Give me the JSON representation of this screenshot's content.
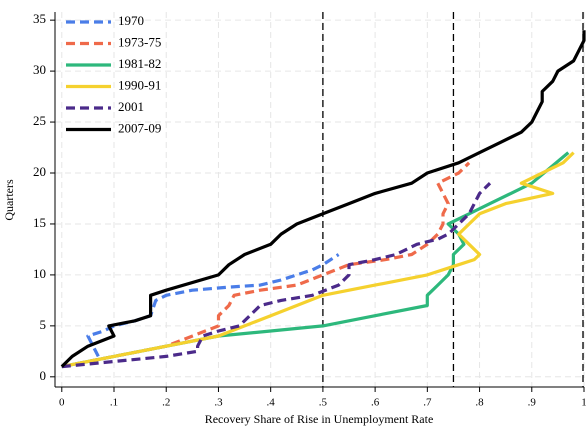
{
  "chart_data": {
    "type": "line",
    "xlabel": "Recovery Share of Rise in Unemployment Rate",
    "ylabel": "Quarters",
    "xlim": [
      -0.013,
      1
    ],
    "ylim": [
      -1,
      35.8
    ],
    "xticks": [
      0,
      {
        "value": 0.1,
        "label": ".1"
      },
      {
        "value": 0.2,
        "label": ".2"
      },
      {
        "value": 0.3,
        "label": ".3"
      },
      {
        "value": 0.4,
        "label": ".4"
      },
      {
        "value": 0.5,
        "label": ".5"
      },
      {
        "value": 0.6,
        "label": ".6"
      },
      {
        "value": 0.7,
        "label": ".7"
      },
      {
        "value": 0.8,
        "label": ".8"
      },
      {
        "value": 0.9,
        "label": ".9"
      },
      1
    ],
    "yticks": [
      0,
      5,
      10,
      15,
      20,
      25,
      30,
      35
    ],
    "grid": true,
    "legend": "top-left",
    "vlines": [
      0.5,
      0.75,
      1
    ],
    "series": [
      {
        "name": "1970",
        "color": "#4a7de8",
        "dashed": true,
        "x": [
          0.07,
          0.05,
          0.08,
          0.1,
          0.14,
          0.17,
          0.18,
          0.2,
          0.25,
          0.32,
          0.38,
          0.42,
          0.45,
          0.48,
          0.5,
          0.53
        ],
        "values": [
          2,
          4,
          4.5,
          5,
          5.5,
          6,
          7.5,
          8,
          8.5,
          8.8,
          9,
          9.5,
          10,
          10.5,
          11,
          12
        ]
      },
      {
        "name": "1973-75",
        "color": "#ef6a4a",
        "dashed": true,
        "x": [
          0,
          0.1,
          0.2,
          0.3,
          0.3,
          0.32,
          0.33,
          0.38,
          0.45,
          0.5,
          0.55,
          0.62,
          0.67,
          0.7,
          0.72,
          0.73,
          0.73,
          0.74,
          0.73,
          0.72,
          0.76,
          0.78
        ],
        "values": [
          1,
          2,
          3,
          5,
          6,
          7,
          8,
          8.5,
          9,
          10,
          11,
          11.5,
          12,
          13,
          14,
          15,
          16,
          17,
          18,
          19,
          20,
          21
        ]
      },
      {
        "name": "1981-82",
        "color": "#2db87c",
        "dashed": false,
        "x": [
          0,
          0.1,
          0.2,
          0.3,
          0.4,
          0.5,
          0.6,
          0.7,
          0.7,
          0.72,
          0.74,
          0.75,
          0.75,
          0.77,
          0.76,
          0.74,
          0.78,
          0.82,
          0.86,
          0.9,
          0.97
        ],
        "values": [
          1,
          2,
          3,
          4,
          4.5,
          5,
          6,
          7,
          8,
          9,
          10,
          11,
          12,
          13,
          14,
          15,
          16,
          17,
          18,
          19,
          22
        ]
      },
      {
        "name": "1990-91",
        "color": "#f5d12e",
        "dashed": false,
        "x": [
          0,
          0.1,
          0.2,
          0.3,
          0.35,
          0.4,
          0.45,
          0.5,
          0.6,
          0.7,
          0.76,
          0.79,
          0.8,
          0.78,
          0.76,
          0.78,
          0.8,
          0.85,
          0.94,
          0.88,
          0.96,
          0.98
        ],
        "values": [
          1,
          2,
          3,
          4,
          5,
          6,
          7,
          8,
          9,
          10,
          11,
          11.5,
          12,
          13,
          14,
          15,
          16,
          17,
          18,
          19,
          21,
          22
        ]
      },
      {
        "name": "2001",
        "color": "#4b2a8a",
        "dashed": true,
        "x": [
          0,
          0.1,
          0.2,
          0.26,
          0.26,
          0.27,
          0.3,
          0.34,
          0.38,
          0.42,
          0.48,
          0.53,
          0.55,
          0.55,
          0.6,
          0.64,
          0.68,
          0.72,
          0.74,
          0.76,
          0.78,
          0.8,
          0.82
        ],
        "values": [
          1,
          1.5,
          2,
          2.5,
          3,
          4,
          4.5,
          5,
          7,
          7.5,
          8,
          9,
          10,
          11,
          11.5,
          12,
          13,
          13.5,
          14,
          15,
          16,
          18,
          19
        ]
      },
      {
        "name": "2007-09",
        "color": "#000000",
        "dashed": false,
        "x": [
          0,
          0.02,
          0.05,
          0.1,
          0.09,
          0.14,
          0.17,
          0.17,
          0.2,
          0.3,
          0.32,
          0.35,
          0.4,
          0.42,
          0.45,
          0.5,
          0.55,
          0.6,
          0.67,
          0.7,
          0.76,
          0.8,
          0.84,
          0.88,
          0.9,
          0.91,
          0.92,
          0.92,
          0.94,
          0.95,
          0.98,
          0.99,
          1,
          1
        ],
        "values": [
          1,
          2,
          3,
          4,
          5,
          5.5,
          6,
          8,
          8.5,
          10,
          11,
          12,
          13,
          14,
          15,
          16,
          17,
          18,
          19,
          20,
          21,
          22,
          23,
          24,
          25,
          26,
          27,
          28,
          29,
          30,
          31,
          32,
          33,
          34
        ]
      }
    ]
  }
}
